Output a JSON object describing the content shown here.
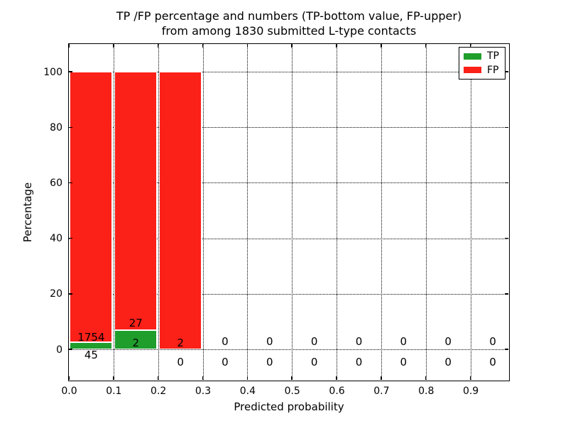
{
  "chart_data": {
    "type": "bar",
    "stacked": true,
    "title_line1": "TP /FP percentage and numbers (TP-bottom value, FP-upper)",
    "title_line2": "from among 1830 submitted L-type contacts",
    "xlabel": "Predicted probability",
    "ylabel": "Percentage",
    "xlim": [
      0,
      0.985
    ],
    "ylim": [
      -11,
      110
    ],
    "grid": "dotted",
    "legend_position": "upper right",
    "legend": [
      {
        "label": "TP",
        "color": "#1f9e2c"
      },
      {
        "label": "FP",
        "color": "#fb2018"
      }
    ],
    "x_ticks": [
      {
        "v": 0.0,
        "label": "0.0"
      },
      {
        "v": 0.1,
        "label": "0.1"
      },
      {
        "v": 0.2,
        "label": "0.2"
      },
      {
        "v": 0.3,
        "label": "0.3"
      },
      {
        "v": 0.4,
        "label": "0.4"
      },
      {
        "v": 0.5,
        "label": "0.5"
      },
      {
        "v": 0.6,
        "label": "0.6"
      },
      {
        "v": 0.7,
        "label": "0.7"
      },
      {
        "v": 0.8,
        "label": "0.8"
      },
      {
        "v": 0.9,
        "label": "0.9"
      }
    ],
    "y_ticks": [
      {
        "v": 0,
        "label": "0"
      },
      {
        "v": 20,
        "label": "20"
      },
      {
        "v": 40,
        "label": "40"
      },
      {
        "v": 60,
        "label": "60"
      },
      {
        "v": 80,
        "label": "80"
      },
      {
        "v": 100,
        "label": "100"
      }
    ],
    "bins": [
      {
        "x0": 0.0,
        "x1": 0.1,
        "tp": 45,
        "fp": 1754,
        "tp_pct": 2.5,
        "fp_pct": 97.5,
        "tp_label_y": -2.1,
        "fp_label_y": 4.3
      },
      {
        "x0": 0.1,
        "x1": 0.2,
        "tp": 2,
        "fp": 27,
        "tp_pct": 6.9,
        "fp_pct": 93.1,
        "tp_label_y": 2.2,
        "fp_label_y": 9.4
      },
      {
        "x0": 0.2,
        "x1": 0.3,
        "tp": 0,
        "fp": 2,
        "tp_pct": 0,
        "fp_pct": 100,
        "tp_label_y": -4.6,
        "fp_label_y": 2.2
      },
      {
        "x0": 0.3,
        "x1": 0.4,
        "tp": 0,
        "fp": 0,
        "tp_pct": 0,
        "fp_pct": 0,
        "tp_label_y": -4.6,
        "fp_label_y": 2.8
      },
      {
        "x0": 0.4,
        "x1": 0.5,
        "tp": 0,
        "fp": 0,
        "tp_pct": 0,
        "fp_pct": 0,
        "tp_label_y": -4.6,
        "fp_label_y": 2.8
      },
      {
        "x0": 0.5,
        "x1": 0.6,
        "tp": 0,
        "fp": 0,
        "tp_pct": 0,
        "fp_pct": 0,
        "tp_label_y": -4.6,
        "fp_label_y": 2.8
      },
      {
        "x0": 0.6,
        "x1": 0.7,
        "tp": 0,
        "fp": 0,
        "tp_pct": 0,
        "fp_pct": 0,
        "tp_label_y": -4.6,
        "fp_label_y": 2.8
      },
      {
        "x0": 0.7,
        "x1": 0.8,
        "tp": 0,
        "fp": 0,
        "tp_pct": 0,
        "fp_pct": 0,
        "tp_label_y": -4.6,
        "fp_label_y": 2.8
      },
      {
        "x0": 0.8,
        "x1": 0.9,
        "tp": 0,
        "fp": 0,
        "tp_pct": 0,
        "fp_pct": 0,
        "tp_label_y": -4.6,
        "fp_label_y": 2.8
      },
      {
        "x0": 0.9,
        "x1": 1.0,
        "tp": 0,
        "fp": 0,
        "tp_pct": 0,
        "fp_pct": 0,
        "tp_label_y": -4.6,
        "fp_label_y": 2.8
      }
    ]
  }
}
